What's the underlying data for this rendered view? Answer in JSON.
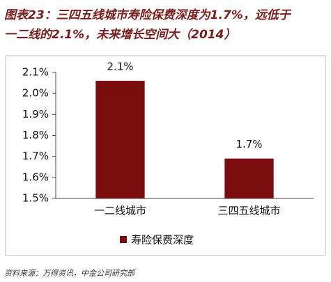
{
  "chart_data": {
    "type": "bar",
    "title": [
      "图表23：三四五线城市寿险保费深度为1.7%，远低于",
      "一二线的2.1%，未来增长空间大（2014）"
    ],
    "categories": [
      "一二线城市",
      "三四五线城市"
    ],
    "series": [
      {
        "name": "寿险保费深度",
        "color": "#7b0d0f",
        "values": [
          2.06,
          1.69
        ],
        "value_labels": [
          "2.1%",
          "1.7%"
        ]
      }
    ],
    "ylim": [
      1.5,
      2.1
    ],
    "yticks": [
      {
        "value": 1.5,
        "label": "1.5%"
      },
      {
        "value": 1.6,
        "label": "1.6%"
      },
      {
        "value": 1.7,
        "label": "1.7%"
      },
      {
        "value": 1.8,
        "label": "1.8%"
      },
      {
        "value": 1.9,
        "label": "1.9%"
      },
      {
        "value": 2.0,
        "label": "2.0%"
      },
      {
        "value": 2.1,
        "label": "2.1%"
      }
    ],
    "grid": false,
    "legend": "bottom",
    "source": "资料来源：万得资讯，中金公司研究部"
  }
}
